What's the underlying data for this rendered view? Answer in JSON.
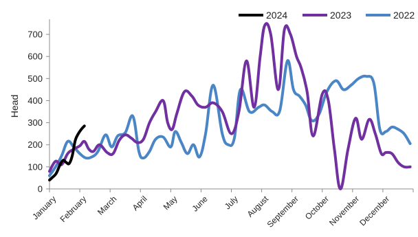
{
  "chart_data": {
    "type": "line",
    "title": "",
    "xlabel": "",
    "ylabel": "Head",
    "ylim": [
      0,
      750
    ],
    "yticks": [
      0,
      100,
      200,
      300,
      400,
      500,
      600,
      700
    ],
    "xlim": [
      0,
      12
    ],
    "categories": [
      "January",
      "February",
      "March",
      "April",
      "May",
      "June",
      "July",
      "August",
      "September",
      "October",
      "November",
      "December"
    ],
    "grid": false,
    "legend_position": "top-right",
    "legend_order": [
      "2024",
      "2023",
      "2022"
    ],
    "series": [
      {
        "name": "2024",
        "color": "#000000",
        "x": [
          0,
          0.08,
          0.22,
          0.35,
          0.45,
          0.55,
          0.65,
          0.75,
          0.85,
          0.95,
          1.05,
          1.15
        ],
        "y": [
          40,
          50,
          70,
          110,
          130,
          120,
          115,
          150,
          220,
          250,
          270,
          285
        ]
      },
      {
        "name": "2023",
        "color": "#7030a0",
        "x": [
          0,
          0.2,
          0.4,
          0.6,
          0.8,
          1.0,
          1.15,
          1.3,
          1.45,
          1.65,
          1.9,
          2.1,
          2.3,
          2.5,
          2.7,
          2.9,
          3.1,
          3.3,
          3.5,
          3.75,
          3.9,
          4.05,
          4.2,
          4.45,
          4.7,
          4.9,
          5.15,
          5.4,
          5.7,
          6.0,
          6.25,
          6.5,
          6.75,
          6.95,
          7.1,
          7.3,
          7.55,
          7.75,
          7.95,
          8.15,
          8.3,
          8.5,
          8.7,
          9.0,
          9.2,
          9.4,
          9.6,
          9.85,
          10.1,
          10.3,
          10.55,
          10.75,
          10.95,
          11.1,
          11.3,
          11.5,
          11.7,
          11.9
        ],
        "y": [
          80,
          125,
          110,
          160,
          180,
          195,
          215,
          180,
          170,
          200,
          165,
          160,
          220,
          245,
          230,
          210,
          225,
          300,
          350,
          400,
          300,
          270,
          340,
          440,
          420,
          380,
          370,
          390,
          350,
          250,
          350,
          580,
          370,
          600,
          740,
          700,
          450,
          720,
          700,
          600,
          550,
          440,
          240,
          430,
          400,
          180,
          0,
          180,
          320,
          225,
          315,
          250,
          160,
          165,
          160,
          120,
          100,
          100
        ]
      },
      {
        "name": "2022",
        "color": "#4a86c6",
        "x": [
          0,
          0.2,
          0.4,
          0.6,
          0.8,
          1.0,
          1.2,
          1.4,
          1.6,
          1.85,
          2.05,
          2.25,
          2.5,
          2.75,
          2.95,
          3.1,
          3.3,
          3.5,
          3.75,
          4.0,
          4.15,
          4.35,
          4.55,
          4.75,
          4.95,
          5.15,
          5.4,
          5.7,
          5.9,
          6.1,
          6.3,
          6.6,
          6.9,
          7.1,
          7.35,
          7.6,
          7.85,
          8.05,
          8.25,
          8.45,
          8.65,
          8.9,
          9.15,
          9.45,
          9.7,
          9.95,
          10.2,
          10.45,
          10.7,
          10.9,
          11.1,
          11.3,
          11.5,
          11.7,
          11.9
        ],
        "y": [
          60,
          100,
          150,
          215,
          190,
          160,
          140,
          145,
          170,
          245,
          190,
          240,
          255,
          330,
          170,
          140,
          170,
          225,
          235,
          190,
          260,
          210,
          160,
          200,
          145,
          250,
          470,
          250,
          200,
          230,
          450,
          350,
          370,
          380,
          350,
          355,
          580,
          450,
          420,
          380,
          310,
          340,
          440,
          490,
          450,
          470,
          500,
          510,
          480,
          270,
          260,
          280,
          270,
          250,
          205
        ]
      }
    ]
  }
}
